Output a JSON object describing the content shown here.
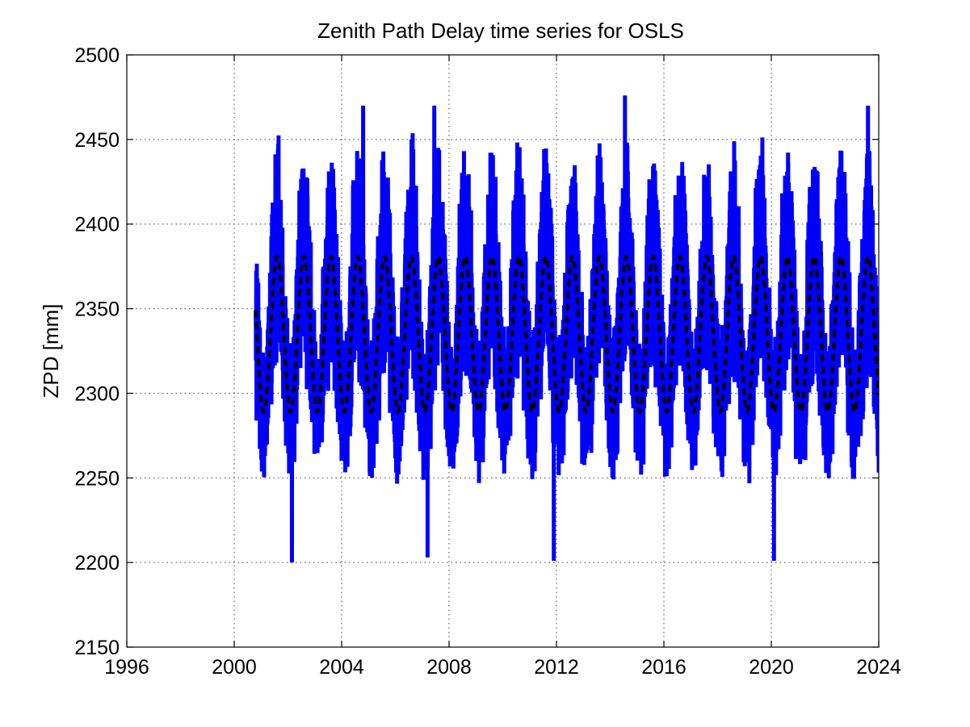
{
  "chart_data": {
    "type": "line",
    "title": "Zenith Path Delay time series for OSLS",
    "xlabel": "",
    "ylabel": "ZPD [mm]",
    "xlim": [
      1996,
      2024
    ],
    "ylim": [
      2150,
      2500
    ],
    "xticks": [
      1996,
      2000,
      2004,
      2008,
      2012,
      2016,
      2020,
      2024
    ],
    "yticks": [
      2150,
      2200,
      2250,
      2300,
      2350,
      2400,
      2450,
      2500
    ],
    "grid": true,
    "legend": "none",
    "colors": {
      "observed": "#0000ff",
      "model": "#000000"
    },
    "series": [
      {
        "style": "solid",
        "color": "#0000ff",
        "x_start": 2000.8,
        "x_end": 2024.0,
        "annual_range_mm": [
          2200,
          2476
        ],
        "extremes": [
          {
            "x": 2002.15,
            "y": 2200
          },
          {
            "x": 2007.2,
            "y": 2203
          },
          {
            "x": 2011.9,
            "y": 2201
          },
          {
            "x": 2020.1,
            "y": 2201
          },
          {
            "x": 2014.55,
            "y": 2476
          },
          {
            "x": 2004.8,
            "y": 2470
          },
          {
            "x": 2007.45,
            "y": 2470
          },
          {
            "x": 2023.6,
            "y": 2470
          }
        ]
      },
      {
        "style": "dashed",
        "color": "#000000",
        "x_start": 2000.8,
        "x_end": 2024.0,
        "mean": 2335,
        "amplitude": 46,
        "period_years": 1.0,
        "peak_fraction_of_year": 0.6
      }
    ]
  }
}
